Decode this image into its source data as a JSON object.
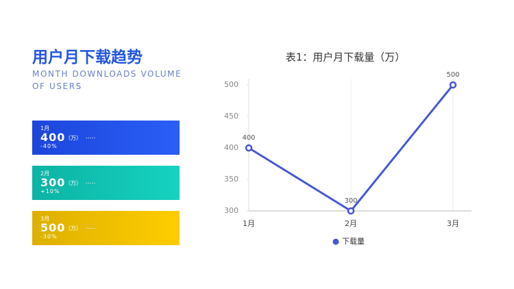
{
  "header": {
    "title": "用户月下载趋势",
    "subtitle": "MONTH DOWNLOADS VOLUME OF USERS"
  },
  "cards": [
    {
      "month": "1月",
      "value": 400,
      "unit": "（万）",
      "note": ".....",
      "change": "-40%",
      "colors": [
        "#1c46dc",
        "#2a5ef6"
      ]
    },
    {
      "month": "2月",
      "value": 300,
      "unit": "（万）",
      "note": ".....",
      "change": "+10%",
      "colors": [
        "#0cb3a4",
        "#16d2c0"
      ]
    },
    {
      "month": "3月",
      "value": 500,
      "unit": "（万）",
      "note": ".....",
      "change": "-30%",
      "colors": [
        "#ddb000",
        "#ffcd00"
      ]
    }
  ],
  "chart_data": {
    "type": "line",
    "title": "表1：用户月下载量（万）",
    "categories": [
      "1月",
      "2月",
      "3月"
    ],
    "series": [
      {
        "name": "下载量",
        "color": "#4757d3",
        "values": [
          400,
          300,
          500
        ]
      }
    ],
    "ylim": [
      300,
      500
    ],
    "yticks": [
      300,
      350,
      400,
      450,
      500
    ],
    "grid": true,
    "legend": "bottom"
  }
}
